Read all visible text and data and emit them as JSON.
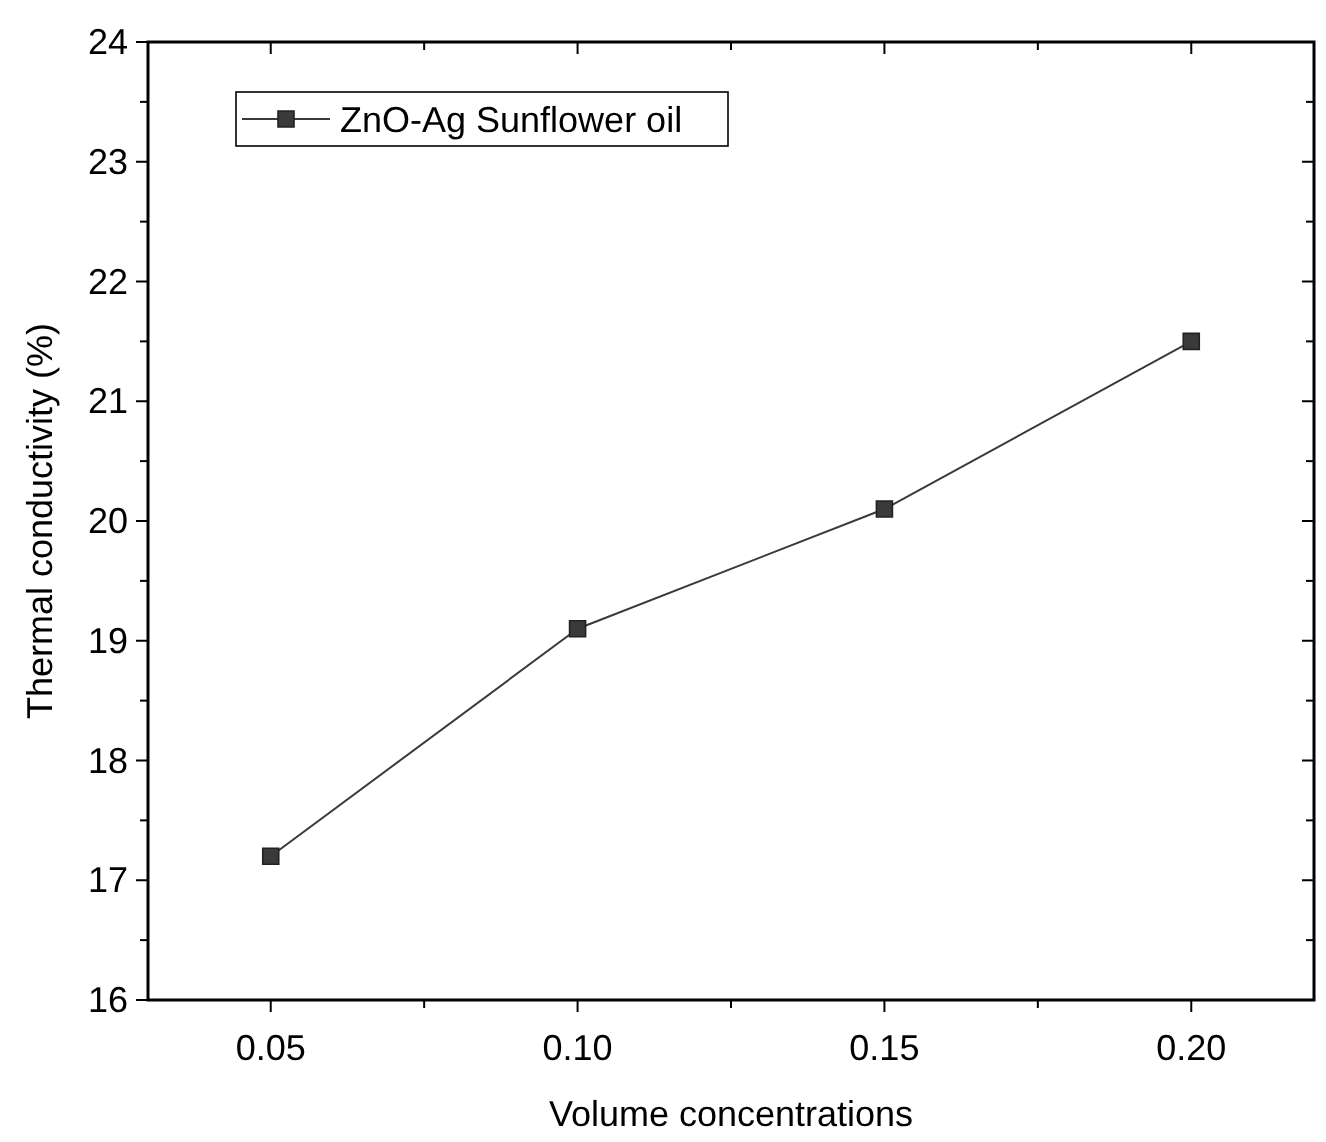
{
  "chart_data": {
    "type": "line",
    "xlabel": "Volume concentrations",
    "ylabel": "Thermal conductivity (%)",
    "x": [
      0.05,
      0.1,
      0.15,
      0.2
    ],
    "series": [
      {
        "name": "ZnO-Ag Sunflower oil",
        "color": "#3a3a3a",
        "values": [
          17.2,
          19.1,
          20.1,
          21.5
        ]
      }
    ],
    "xlim": [
      0.03,
      0.22
    ],
    "xticks": [
      {
        "value": 0.05,
        "label": "0.05"
      },
      {
        "value": 0.1,
        "label": "0.10"
      },
      {
        "value": 0.15,
        "label": "0.15"
      },
      {
        "value": 0.2,
        "label": "0.20"
      }
    ],
    "ylim": [
      16,
      24
    ],
    "yticks": [
      16,
      17,
      18,
      19,
      20,
      21,
      22,
      23,
      24
    ],
    "marker": "square",
    "legend": "top left",
    "grid": false
  }
}
